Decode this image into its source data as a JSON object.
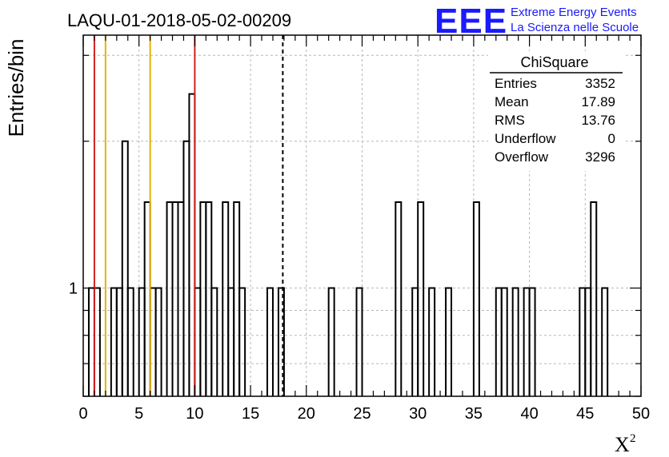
{
  "chart_data": {
    "type": "bar",
    "title": "LAQU-01-2018-05-02-00209",
    "xlabel": "X",
    "xlabel_superscript": "2",
    "ylabel": "Entries/bin",
    "xlim": [
      0,
      50
    ],
    "ylim_log": [
      0.6,
      3.3
    ],
    "y_scale": "log",
    "grid": true,
    "bin_width": 0.5,
    "x_ticks": [
      0,
      5,
      10,
      15,
      20,
      25,
      30,
      35,
      40,
      45,
      50
    ],
    "y_tick_labels": [
      {
        "value": 1,
        "label": "1"
      }
    ],
    "bins": [
      {
        "x": 0.5,
        "value": 1
      },
      {
        "x": 1.0,
        "value": 1
      },
      {
        "x": 2.5,
        "value": 1
      },
      {
        "x": 3.0,
        "value": 1
      },
      {
        "x": 3.5,
        "value": 2
      },
      {
        "x": 4.0,
        "value": 1
      },
      {
        "x": 5.0,
        "value": 1
      },
      {
        "x": 5.5,
        "value": 1.5
      },
      {
        "x": 6.0,
        "value": 1
      },
      {
        "x": 6.5,
        "value": 1
      },
      {
        "x": 7.5,
        "value": 1.5
      },
      {
        "x": 8.0,
        "value": 1.5
      },
      {
        "x": 8.5,
        "value": 1.5
      },
      {
        "x": 9.0,
        "value": 2
      },
      {
        "x": 9.5,
        "value": 2.5
      },
      {
        "x": 10.0,
        "value": 1
      },
      {
        "x": 10.5,
        "value": 1.5
      },
      {
        "x": 11.0,
        "value": 1.5
      },
      {
        "x": 11.5,
        "value": 1
      },
      {
        "x": 12.5,
        "value": 1.5
      },
      {
        "x": 13.0,
        "value": 1
      },
      {
        "x": 13.5,
        "value": 1.5
      },
      {
        "x": 14.0,
        "value": 1
      },
      {
        "x": 16.5,
        "value": 1
      },
      {
        "x": 17.5,
        "value": 1
      },
      {
        "x": 22.0,
        "value": 1
      },
      {
        "x": 24.5,
        "value": 1
      },
      {
        "x": 28.0,
        "value": 1.5
      },
      {
        "x": 29.5,
        "value": 1
      },
      {
        "x": 30.0,
        "value": 1.5
      },
      {
        "x": 31.0,
        "value": 1
      },
      {
        "x": 32.5,
        "value": 1
      },
      {
        "x": 35.0,
        "value": 1.5
      },
      {
        "x": 37.0,
        "value": 1
      },
      {
        "x": 37.5,
        "value": 1
      },
      {
        "x": 38.5,
        "value": 1
      },
      {
        "x": 39.5,
        "value": 1
      },
      {
        "x": 40.0,
        "value": 1
      },
      {
        "x": 44.5,
        "value": 1
      },
      {
        "x": 45.0,
        "value": 1
      },
      {
        "x": 45.5,
        "value": 1.5
      },
      {
        "x": 46.5,
        "value": 1
      }
    ],
    "vertical_lines": [
      {
        "x": 1,
        "color": "#d42020",
        "style": "solid"
      },
      {
        "x": 2,
        "color": "#e8b000",
        "style": "solid"
      },
      {
        "x": 6,
        "color": "#e8b000",
        "style": "solid"
      },
      {
        "x": 10,
        "color": "#d42020",
        "style": "solid"
      },
      {
        "x": 17.89,
        "color": "#000000",
        "style": "dashed"
      }
    ],
    "stats_box": {
      "title": "ChiSquare",
      "rows": [
        {
          "label": "Entries",
          "value": "3352"
        },
        {
          "label": "Mean",
          "value": "17.89"
        },
        {
          "label": "RMS",
          "value": "13.76"
        },
        {
          "label": "Underflow",
          "value": "0"
        },
        {
          "label": "Overflow",
          "value": "3296"
        }
      ]
    }
  },
  "logo": {
    "acronym": "EEE",
    "line1": "Extreme Energy Events",
    "line2": "La Scienza nelle Scuole",
    "color": "#1a1aff"
  }
}
